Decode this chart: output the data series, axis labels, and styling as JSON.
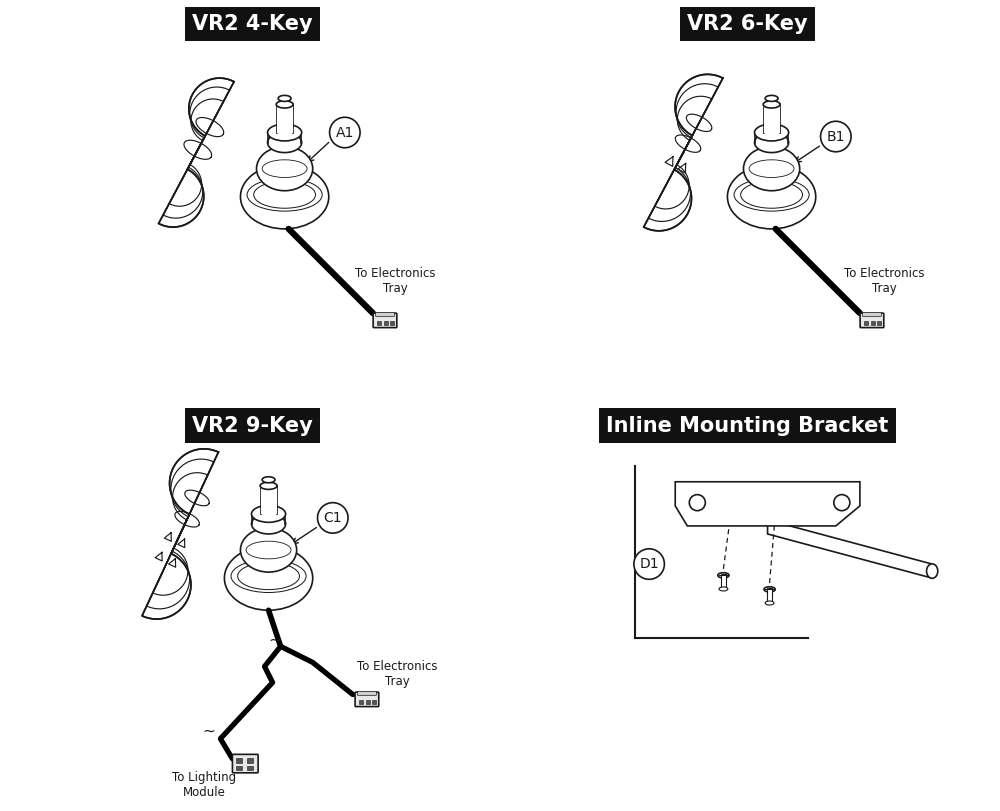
{
  "bg_color": "#ffffff",
  "title_bg_color": "#111111",
  "title_text_color": "#ffffff",
  "line_color": "#1a1a1a",
  "border_color": "#1a1a1a",
  "title_fontsize": 15,
  "label_fontsize": 10,
  "annotation_fontsize": 8.5,
  "panels": [
    {
      "title": "VR2 4-Key",
      "label": "A1",
      "keys": 4,
      "row": 0,
      "col": 0
    },
    {
      "title": "VR2 6-Key",
      "label": "B1",
      "keys": 6,
      "row": 0,
      "col": 1
    },
    {
      "title": "VR2 9-Key",
      "label": "C1",
      "keys": 9,
      "row": 1,
      "col": 0
    },
    {
      "title": "Inline Mounting Bracket",
      "label": "D1",
      "keys": 0,
      "row": 1,
      "col": 1
    }
  ]
}
